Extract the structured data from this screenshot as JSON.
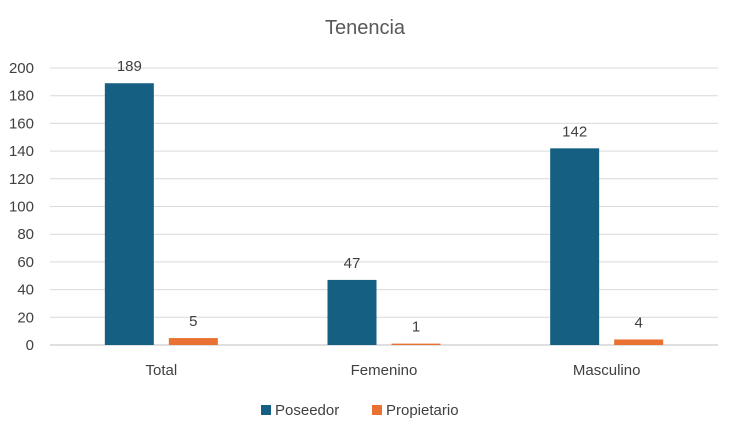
{
  "chart_data": {
    "type": "bar",
    "title": "Tenencia",
    "categories": [
      "Total",
      "Femenino",
      "Masculino"
    ],
    "series": [
      {
        "name": "Poseedor",
        "values": [
          189,
          47,
          142
        ],
        "color": "#156082"
      },
      {
        "name": "Propietario",
        "values": [
          5,
          1,
          4
        ],
        "color": "#E97132"
      }
    ],
    "ylim": [
      0,
      200
    ],
    "yticks": [
      "0",
      "20",
      "40",
      "60",
      "80",
      "100",
      "120",
      "140",
      "160",
      "180",
      "200"
    ],
    "grid": true,
    "legend_position": "bottom"
  }
}
